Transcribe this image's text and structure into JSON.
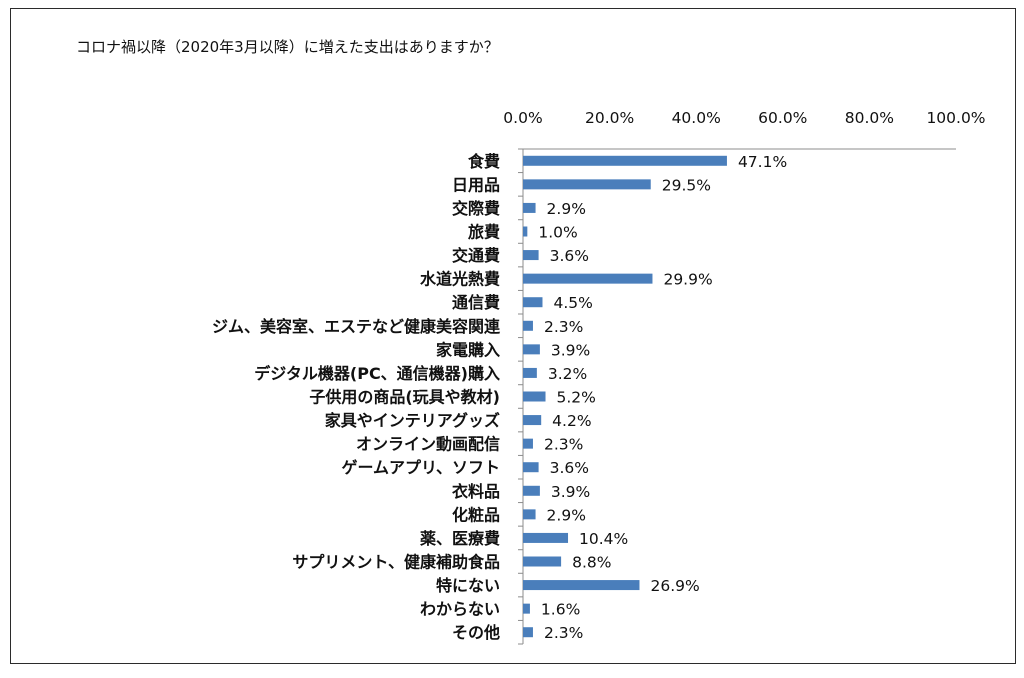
{
  "chart_data": {
    "type": "bar",
    "orientation": "horizontal",
    "title": "コロナ禍以降（2020年3月以降）に増えた支出はありますか？",
    "xlim": [
      0,
      100
    ],
    "x_ticks": [
      "0.0%",
      "20.0%",
      "40.0%",
      "60.0%",
      "80.0%",
      "100.0%"
    ],
    "x_tick_values": [
      0,
      20,
      40,
      60,
      80,
      100
    ],
    "axis_position": "top",
    "grid": false,
    "bar_color": "#4a7ebb",
    "categories": [
      "食費",
      "日用品",
      "交際費",
      "旅費",
      "交通費",
      "水道光熱費",
      "通信費",
      "ジム、美容室、エステなど健康美容関連",
      "家電購入",
      "デジタル機器(PC、通信機器)購入",
      "子供用の商品(玩具や教材)",
      "家具やインテリアグッズ",
      "オンライン動画配信",
      "ゲームアプリ、ソフト",
      "衣料品",
      "化粧品",
      "薬、医療費",
      "サプリメント、健康補助食品",
      "特にない",
      "わからない",
      "その他"
    ],
    "values": [
      47.1,
      29.5,
      2.9,
      1.0,
      3.6,
      29.9,
      4.5,
      2.3,
      3.9,
      3.2,
      5.2,
      4.2,
      2.3,
      3.6,
      3.9,
      2.9,
      10.4,
      8.8,
      26.9,
      1.6,
      2.3
    ],
    "value_labels": [
      "47.1%",
      "29.5%",
      "2.9%",
      "1.0%",
      "3.6%",
      "29.9%",
      "4.5%",
      "2.3%",
      "3.9%",
      "3.2%",
      "5.2%",
      "4.2%",
      "2.3%",
      "3.6%",
      "3.9%",
      "2.9%",
      "10.4%",
      "8.8%",
      "26.9%",
      "1.6%",
      "2.3%"
    ]
  }
}
